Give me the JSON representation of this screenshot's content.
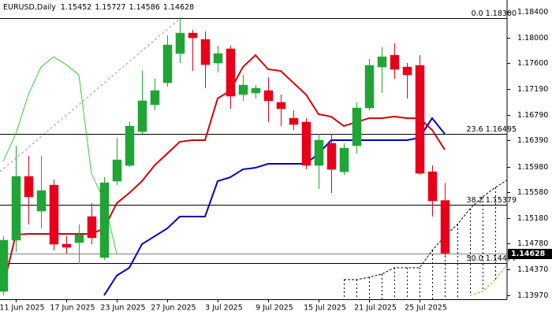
{
  "chart_data": {
    "type": "candlestick",
    "symbol": "EURUSD,Daily",
    "categories": [
      null,
      "11 Jun 2025",
      null,
      null,
      null,
      "17 Jun 2025",
      null,
      null,
      null,
      "23 Jun 2025",
      null,
      null,
      null,
      "27 Jun 2025",
      null,
      null,
      null,
      "3 Jul 2025",
      null,
      null,
      null,
      "9 Jul 2025",
      null,
      null,
      null,
      "15 Jul 2025",
      null,
      null,
      null,
      "21 Jul 2025",
      null,
      null,
      null,
      "25 Jul 2025",
      null,
      null,
      null,
      null,
      null,
      null,
      null
    ],
    "open": [
      1.14031,
      1.14831,
      1.15828,
      1.15286,
      1.15692,
      1.14769,
      1.14794,
      1.152,
      1.1456,
      1.15754,
      1.16,
      1.16529,
      1.16948,
      1.17292,
      1.17748,
      1.18068,
      1.17969,
      1.176,
      1.17822,
      1.17108,
      1.17132,
      1.17169,
      1.16985,
      1.16738,
      1.16677,
      1.16,
      1.16345,
      1.15901,
      1.16308,
      1.16898,
      1.17538,
      1.17723,
      1.17538,
      1.17563,
      1.15901,
      1.15452,
      null,
      null,
      null,
      null,
      null
    ],
    "high": [
      1.14892,
      1.16308,
      1.16148,
      1.16148,
      1.15778,
      1.14892,
      1.15077,
      1.15409,
      1.15815,
      1.16431,
      1.16677,
      1.17477,
      1.17354,
      1.18031,
      1.183,
      1.18117,
      1.18092,
      1.17871,
      1.17871,
      1.17415,
      1.17255,
      1.17378,
      1.17108,
      1.16862,
      1.16738,
      1.16492,
      1.16492,
      1.16345,
      1.16985,
      1.17662,
      1.17846,
      1.17908,
      1.176,
      1.17723,
      1.16,
      1.15727,
      null,
      null,
      null,
      null,
      null
    ],
    "low": [
      1.13969,
      1.14646,
      1.15077,
      1.15015,
      1.14671,
      1.14622,
      1.14462,
      1.14769,
      1.14523,
      1.15692,
      1.15975,
      1.16492,
      1.16862,
      1.17231,
      1.176,
      1.17477,
      1.17206,
      1.17452,
      1.16886,
      1.17009,
      1.17046,
      1.16677,
      1.16615,
      1.16554,
      1.15938,
      1.15631,
      1.15569,
      1.15852,
      1.16185,
      1.16862,
      1.17132,
      1.17354,
      1.17046,
      1.15852,
      1.152,
      1.14586,
      null,
      null,
      null,
      null,
      null
    ],
    "close": [
      1.14831,
      1.15828,
      1.15508,
      1.15606,
      1.14769,
      1.1472,
      1.14917,
      1.14868,
      1.15729,
      1.16086,
      1.16615,
      1.17009,
      1.17169,
      1.17883,
      1.18068,
      1.17994,
      1.17575,
      1.17748,
      1.17083,
      1.17255,
      1.17206,
      1.17009,
      1.16886,
      1.1664,
      1.16,
      1.16394,
      1.15938,
      1.16271,
      1.16898,
      1.17563,
      1.17698,
      1.17502,
      1.17415,
      1.15877,
      1.15446,
      1.14628,
      null,
      null,
      null,
      null,
      null
    ],
    "up_color": "#1fa535",
    "down_color": "#e8001b",
    "lines": [
      {
        "color": "#d40000",
        "values": [
          1.14092,
          1.14917,
          1.14929,
          1.14929,
          1.14929,
          1.14929,
          1.14929,
          1.14929,
          1.15015,
          1.15409,
          1.15569,
          1.15754,
          1.16,
          1.16185,
          1.16369,
          1.16394,
          1.16394,
          1.17046,
          1.17169,
          1.17538,
          1.17723,
          1.17502,
          1.17477,
          1.17292,
          1.17108,
          1.168,
          1.16763,
          1.16615,
          1.16677,
          1.16738,
          1.16738,
          1.16763,
          1.16738,
          1.16738,
          1.16554,
          1.16246,
          null,
          null,
          null,
          null,
          null
        ]
      },
      {
        "color": "#0000c8",
        "values": [
          null,
          null,
          null,
          null,
          null,
          null,
          null,
          null,
          1.13969,
          1.14277,
          1.144,
          1.14769,
          1.14892,
          1.15015,
          1.152,
          1.152,
          1.152,
          1.15754,
          1.15815,
          1.15938,
          1.15963,
          1.16025,
          1.16025,
          1.16025,
          1.16025,
          1.16185,
          1.16394,
          1.16394,
          1.16394,
          1.16394,
          1.16394,
          1.16394,
          1.16394,
          1.16431,
          1.16738,
          1.16492,
          null,
          null,
          null,
          null,
          null
        ]
      },
      {
        "color": "#33cc33",
        "values": [
          1.16061,
          1.16492,
          1.17108,
          1.17538,
          1.17698,
          1.17575,
          1.17415,
          1.15877,
          1.15446,
          1.14622,
          null,
          null,
          null,
          null,
          null,
          null,
          null,
          null,
          null,
          null,
          null,
          null,
          null,
          null,
          null,
          null,
          null,
          null,
          null,
          null,
          null,
          null,
          null,
          null,
          null,
          null,
          null,
          null,
          null,
          null,
          null
        ]
      }
    ],
    "cloud": {
      "upper": {
        "color": "#000000",
        "values": [
          null,
          null,
          null,
          null,
          null,
          null,
          null,
          null,
          null,
          null,
          null,
          null,
          null,
          null,
          null,
          null,
          null,
          null,
          null,
          null,
          null,
          null,
          null,
          null,
          null,
          null,
          null,
          1.14215,
          1.14215,
          1.14252,
          1.14301,
          1.144,
          1.144,
          1.144,
          1.14671,
          1.14892,
          1.15077,
          1.15323,
          1.15508,
          1.15655,
          1.15778
        ]
      },
      "lower": {
        "color": "#ff8c00",
        "values": [
          null,
          null,
          null,
          null,
          null,
          null,
          null,
          null,
          null,
          null,
          null,
          null,
          null,
          null,
          null,
          null,
          null,
          null,
          null,
          null,
          null,
          null,
          null,
          null,
          null,
          null,
          null,
          null,
          null,
          null,
          null,
          null,
          null,
          null,
          null,
          null,
          null,
          1.13969,
          1.14031,
          1.14215,
          1.14462
        ]
      }
    },
    "fib_levels": [
      {
        "value": 1.183,
        "label": "0.0 1.18300"
      },
      {
        "value": 1.16495,
        "label": "23.6 1.16495"
      },
      {
        "value": 1.15379,
        "label": "38.2 1.15379"
      },
      {
        "value": 1.14477,
        "label": "50.0 1.14477"
      }
    ],
    "last_price": 1.14628,
    "ylim": [
      1.13908,
      1.18585
    ],
    "yticks": [
      {
        "value": 1.184,
        "label": "1.18400"
      },
      {
        "value": 1.18,
        "label": "1.18000"
      },
      {
        "value": 1.176,
        "label": "1.17600"
      },
      {
        "value": 1.1719,
        "label": "1.17190"
      },
      {
        "value": 1.1679,
        "label": "1.16790"
      },
      {
        "value": 1.1639,
        "label": "1.16390"
      },
      {
        "value": 1.1598,
        "label": "1.15980"
      },
      {
        "value": 1.1558,
        "label": "1.15580"
      },
      {
        "value": 1.1518,
        "label": "1.15180"
      },
      {
        "value": 1.1478,
        "label": "1.14780"
      },
      {
        "value": 1.1437,
        "label": "1.14370"
      },
      {
        "value": 1.1397,
        "label": "1.13970"
      }
    ]
  }
}
